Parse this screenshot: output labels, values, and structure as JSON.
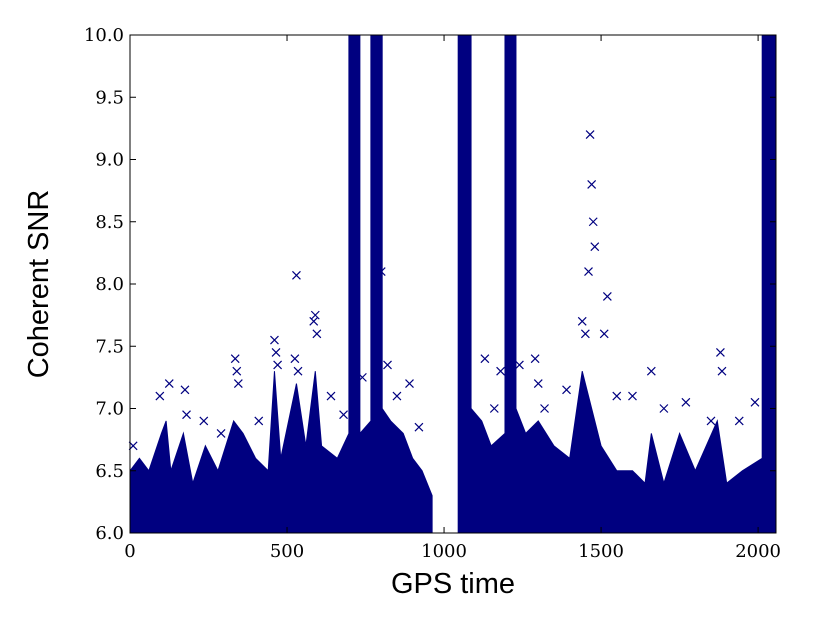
{
  "chart_data": {
    "type": "scatter",
    "x_label": "GPS time",
    "y_label": "Coherent SNR",
    "xlim": [
      0,
      2057
    ],
    "ylim": [
      6,
      10
    ],
    "xticks": [
      0,
      500,
      1000,
      1500,
      2000
    ],
    "yticks": [
      {
        "value": 6,
        "label": "6.0"
      },
      {
        "value": 6.5,
        "label": "6.5"
      },
      {
        "value": 7,
        "label": "7.0"
      },
      {
        "value": 7.5,
        "label": "7.5"
      },
      {
        "value": 8,
        "label": "8.0"
      },
      {
        "value": 8.5,
        "label": "8.5"
      },
      {
        "value": 9,
        "label": "9.0"
      },
      {
        "value": 9.5,
        "label": "9.5"
      },
      {
        "value": 10,
        "label": "10.0"
      }
    ],
    "grid": false,
    "series": [
      {
        "type": "area",
        "color": "#000080",
        "x": [
          0,
          30,
          60,
          100,
          115,
          130,
          170,
          200,
          240,
          280,
          330,
          360,
          400,
          440,
          460,
          480,
          530,
          560,
          590,
          610,
          660,
          697,
          697,
          732,
          732,
          767,
          767,
          803,
          803,
          830,
          870,
          900,
          930,
          962,
          962,
          1045,
          1045,
          1086,
          1086,
          1120,
          1150,
          1194,
          1194,
          1229,
          1229,
          1260,
          1300,
          1350,
          1400,
          1440,
          1470,
          1500,
          1550,
          1600,
          1640,
          1660,
          1700,
          1750,
          1800,
          1870,
          1900,
          1950,
          2013,
          2013,
          2057
        ],
        "values": [
          6.5,
          6.6,
          6.5,
          6.8,
          6.9,
          6.5,
          6.8,
          6.4,
          6.7,
          6.5,
          6.9,
          6.8,
          6.6,
          6.5,
          7.3,
          6.6,
          7.2,
          6.7,
          7.3,
          6.7,
          6.6,
          6.8,
          10,
          10,
          6.8,
          6.9,
          10,
          10,
          7.0,
          6.9,
          6.8,
          6.6,
          6.5,
          6.3,
          6.0,
          6.0,
          10,
          10,
          7.0,
          6.9,
          6.7,
          6.8,
          10,
          10,
          7.0,
          6.8,
          6.9,
          6.7,
          6.6,
          7.3,
          7.0,
          6.7,
          6.5,
          6.5,
          6.4,
          6.8,
          6.4,
          6.8,
          6.5,
          6.9,
          6.4,
          6.5,
          6.6,
          10,
          10
        ]
      },
      {
        "type": "scatter",
        "color": "#000080",
        "x": [
          10,
          95,
          125,
          175,
          180,
          235,
          290,
          335,
          340,
          345,
          410,
          460,
          465,
          470,
          525,
          530,
          535,
          585,
          590,
          595,
          640,
          680,
          740,
          800,
          820,
          850,
          890,
          920,
          1130,
          1160,
          1180,
          1240,
          1290,
          1300,
          1320,
          1390,
          1440,
          1450,
          1460,
          1465,
          1470,
          1475,
          1480,
          1510,
          1520,
          1550,
          1600,
          1660,
          1700,
          1770,
          1850,
          1880,
          1885,
          1940,
          1990
        ],
        "values": [
          6.7,
          7.1,
          7.2,
          7.15,
          6.95,
          6.9,
          6.8,
          7.4,
          7.3,
          7.2,
          6.9,
          7.55,
          7.45,
          7.35,
          7.4,
          8.07,
          7.3,
          7.7,
          7.75,
          7.6,
          7.1,
          6.95,
          7.25,
          8.1,
          7.35,
          7.1,
          7.2,
          6.85,
          7.4,
          7.0,
          7.3,
          7.35,
          7.4,
          7.2,
          7.0,
          7.15,
          7.7,
          7.6,
          8.1,
          9.2,
          8.8,
          8.5,
          8.3,
          7.6,
          7.9,
          7.1,
          7.1,
          7.3,
          7.0,
          7.05,
          6.9,
          7.45,
          7.3,
          6.9,
          7.05
        ]
      }
    ]
  }
}
